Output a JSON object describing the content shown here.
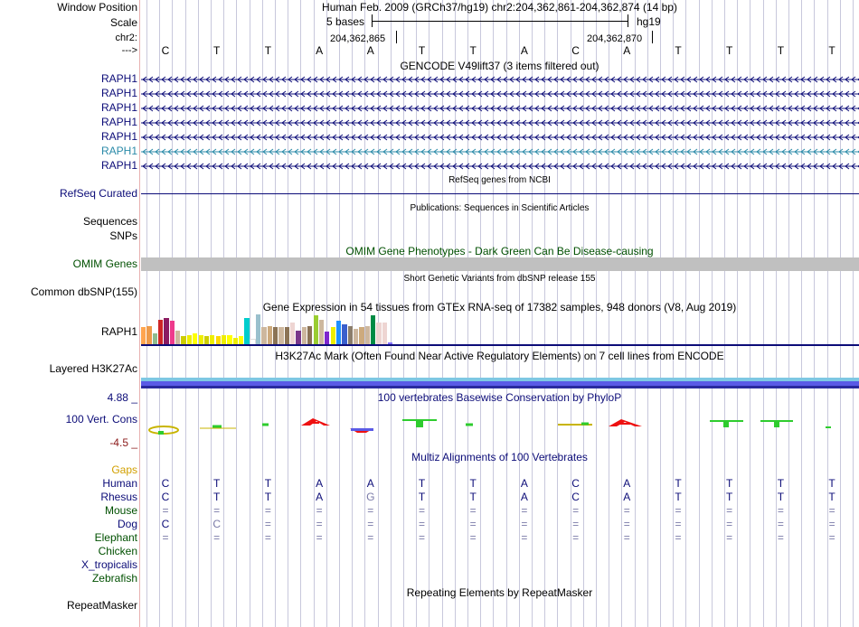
{
  "header": {
    "window_position_label": "Window Position",
    "scale_label": "Scale",
    "chrom_label": "chr2:",
    "strand_label": "--->",
    "position_text": "Human Feb. 2009 (GRCh37/hg19)   chr2:204,362,861-204,362,874 (14 bp)",
    "scale_text": "5 bases",
    "assembly": "hg19",
    "coord_1": "204,362,865",
    "coord_2": "204,362,870"
  },
  "sequence": [
    "C",
    "T",
    "T",
    "A",
    "A",
    "T",
    "T",
    "A",
    "C",
    "A",
    "T",
    "T",
    "T",
    "T"
  ],
  "gencode": {
    "title": "GENCODE V49lift37 (3 items filtered out)",
    "transcripts": [
      {
        "label": "RAPH1",
        "color": "#0c0c78"
      },
      {
        "label": "RAPH1",
        "color": "#0c0c78"
      },
      {
        "label": "RAPH1",
        "color": "#0c0c78"
      },
      {
        "label": "RAPH1",
        "color": "#0c0c78"
      },
      {
        "label": "RAPH1",
        "color": "#0c0c78"
      },
      {
        "label": "RAPH1",
        "color": "#2a8aa8"
      },
      {
        "label": "RAPH1",
        "color": "#0c0c78"
      }
    ]
  },
  "refseq": {
    "label": "RefSeq Curated",
    "title": "RefSeq genes from NCBI"
  },
  "publications": {
    "title": "Publications: Sequences in Scientific Articles",
    "label_sequences": "Sequences",
    "label_snps": "SNPs"
  },
  "omim": {
    "title": "OMIM Gene Phenotypes - Dark Green Can Be Disease-causing",
    "label": "OMIM Genes"
  },
  "dbsnp": {
    "title": "Short Genetic Variants from dbSNP release 155",
    "label": "Common dbSNP(155)"
  },
  "gtex": {
    "title": "Gene Expression in 54 tissues from GTEx RNA-seq of 17382 samples, 948 donors (V8, Aug 2019)",
    "label": "RAPH1",
    "tissue_colors": [
      "#ffa54f",
      "#ee9a49",
      "#8fbc8f",
      "#cd2626",
      "#8b1c62",
      "#ee3a8c",
      "#cdb79e",
      "#cdcd00",
      "#eeee00",
      "#ffff00",
      "#eeee00",
      "#cdcd00",
      "#eeee00",
      "#ffd700",
      "#eeee00",
      "#ffff00",
      "#eeee00",
      "#ffff00",
      "#00cdcd",
      "#ffffff",
      "#9ac0cd",
      "#cdb79e",
      "#cdaa7d",
      "#8b7355",
      "#cdb79e",
      "#8b7355",
      "#eed5d2",
      "#7a378b",
      "#cdb79e",
      "#8b7355",
      "#9acd32",
      "#cdb79e",
      "#7d26cd",
      "#eeee00",
      "#1e90ff",
      "#3a5fcd",
      "#8b7d6b",
      "#cdb79e",
      "#cdaa7d",
      "#cdb79e",
      "#008b45",
      "#eed5d2",
      "#eed5d2",
      "#8470ff"
    ],
    "tissue_values": [
      0.55,
      0.6,
      0.35,
      0.8,
      0.85,
      0.75,
      0.45,
      0.25,
      0.3,
      0.35,
      0.3,
      0.25,
      0.3,
      0.25,
      0.28,
      0.3,
      0.2,
      0.25,
      0.85,
      0.15,
      0.98,
      0.55,
      0.6,
      0.55,
      0.55,
      0.55,
      0.7,
      0.45,
      0.55,
      0.6,
      0.95,
      0.8,
      0.4,
      0.55,
      0.75,
      0.65,
      0.6,
      0.5,
      0.55,
      0.6,
      0.95,
      0.7,
      0.7,
      0.05
    ]
  },
  "h3k27ac": {
    "title": "H3K27Ac Mark (Often Found Near Active Regulatory Elements) on 7 cell lines from ENCODE",
    "label": "Layered H3K27Ac"
  },
  "phylop": {
    "title": "100 vertebrates Basewise Conservation by PhyloP",
    "label": "100 Vert. Cons",
    "max": "4.88 _",
    "min": "-4.5 _"
  },
  "multiz": {
    "title": "Multiz Alignments of 100 Vertebrates",
    "gaps_label": "Gaps",
    "species": [
      {
        "name": "Human",
        "color": "#0c0c78",
        "bases": [
          "C",
          "T",
          "T",
          "A",
          "A",
          "T",
          "T",
          "A",
          "C",
          "A",
          "T",
          "T",
          "T",
          "T"
        ]
      },
      {
        "name": "Rhesus",
        "color": "#0c0c78",
        "bases": [
          "C",
          "T",
          "T",
          "A",
          "G",
          "T",
          "T",
          "A",
          "C",
          "A",
          "T",
          "T",
          "T",
          "T"
        ]
      },
      {
        "name": "Mouse",
        "color": "#005000",
        "bases": [
          "=",
          "=",
          "=",
          "=",
          "=",
          "=",
          "=",
          "=",
          "=",
          "=",
          "=",
          "=",
          "=",
          "="
        ]
      },
      {
        "name": "Dog",
        "color": "#0c0c78",
        "bases": [
          "C",
          "C",
          "=",
          "=",
          "=",
          "=",
          "=",
          "=",
          "=",
          "=",
          "=",
          "=",
          "=",
          "="
        ]
      },
      {
        "name": "Elephant",
        "color": "#005000",
        "bases": [
          "=",
          "=",
          "=",
          "=",
          "=",
          "=",
          "=",
          "=",
          "=",
          "=",
          "=",
          "=",
          "=",
          "="
        ]
      },
      {
        "name": "Chicken",
        "color": "#005000",
        "bases": []
      },
      {
        "name": "X_tropicalis",
        "color": "#0c0c78",
        "bases": []
      },
      {
        "name": "Zebrafish",
        "color": "#005000",
        "bases": []
      }
    ]
  },
  "repeatmasker": {
    "title": "Repeating Elements by RepeatMasker",
    "label": "RepeatMasker"
  },
  "colors": {
    "navy": "#0c0c78",
    "gaps": "#d2a000",
    "omim_bar": "#c0c0c0",
    "h3k27ac_top": "#7ec8e3",
    "h3k27ac_bottom": "#3333cc"
  }
}
